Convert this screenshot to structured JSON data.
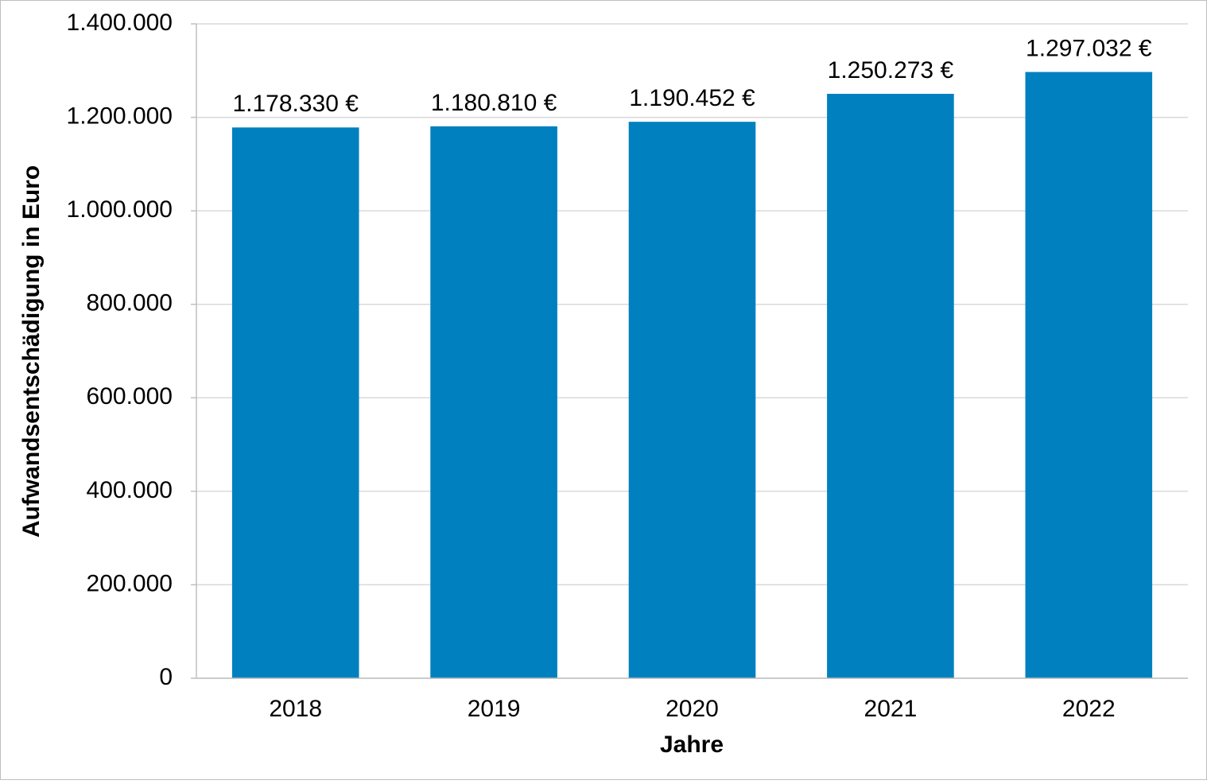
{
  "chart_data": {
    "type": "bar",
    "x_label": "Jahre",
    "y_label": "Aufwandsentschädigung in Euro",
    "categories": [
      "2018",
      "2019",
      "2020",
      "2021",
      "2022"
    ],
    "values": [
      1178330,
      1180810,
      1190452,
      1250273,
      1297032
    ],
    "value_labels": [
      "1.178.330 €",
      "1.180.810 €",
      "1.190.452 €",
      "1.250.273 €",
      "1.297.032 €"
    ],
    "color": "#0080bf",
    "ylim": [
      0,
      1400000
    ],
    "yticks": [
      0,
      {
        "value": 200000,
        "label": "200.000"
      },
      {
        "value": 400000,
        "label": "400.000"
      },
      {
        "value": 600000,
        "label": "600.000"
      },
      {
        "value": 800000,
        "label": "800.000"
      },
      {
        "value": 1000000,
        "label": "1.000.000"
      },
      {
        "value": 1200000,
        "label": "1.200.000"
      },
      {
        "value": 1400000,
        "label": "1.400.000"
      }
    ],
    "grid": true
  }
}
